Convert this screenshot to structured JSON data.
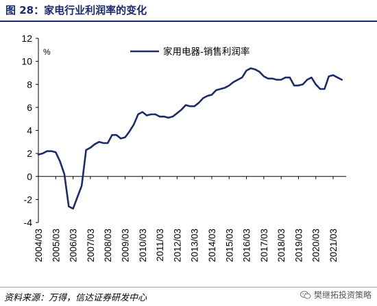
{
  "figure": {
    "title": "图 28：家电行业利润率的变化",
    "source": "资料来源：万得，信达证券研发中心",
    "watermark": "樊继拓投资策略",
    "watermark_icon": "wechat-icon",
    "accent_color": "#1a2a6c"
  },
  "chart_data": {
    "type": "line",
    "title": "",
    "ylabel": "%",
    "xlabel": "",
    "ylim": [
      -4,
      12
    ],
    "yticks": [
      "-4",
      "-2",
      "0",
      "2",
      "4",
      "6",
      "8",
      "10",
      "12"
    ],
    "xticks": [
      "2004/03",
      "2005/03",
      "2006/03",
      "2007/03",
      "2008/03",
      "2009/03",
      "2010/03",
      "2011/03",
      "2012/03",
      "2013/03",
      "2014/03",
      "2015/03",
      "2016/03",
      "2017/03",
      "2018/03",
      "2019/03",
      "2020/03",
      "2021/03"
    ],
    "x_range": [
      "2004/03",
      "2021/12"
    ],
    "grid": false,
    "legend_position": "top-right",
    "series": [
      {
        "name": "家用电器-销售利润率",
        "color": "#1a2a6c",
        "x": [
          "2004/03",
          "2004/06",
          "2004/09",
          "2004/12",
          "2005/03",
          "2005/06",
          "2005/09",
          "2005/12",
          "2006/03",
          "2006/06",
          "2006/09",
          "2006/12",
          "2007/03",
          "2007/06",
          "2007/09",
          "2007/12",
          "2008/03",
          "2008/06",
          "2008/09",
          "2008/12",
          "2009/03",
          "2009/06",
          "2009/09",
          "2009/12",
          "2010/03",
          "2010/06",
          "2010/09",
          "2010/12",
          "2011/03",
          "2011/06",
          "2011/09",
          "2011/12",
          "2012/03",
          "2012/06",
          "2012/09",
          "2012/12",
          "2013/03",
          "2013/06",
          "2013/09",
          "2013/12",
          "2014/03",
          "2014/06",
          "2014/09",
          "2014/12",
          "2015/03",
          "2015/06",
          "2015/09",
          "2015/12",
          "2016/03",
          "2016/06",
          "2016/09",
          "2016/12",
          "2017/03",
          "2017/06",
          "2017/09",
          "2017/12",
          "2018/03",
          "2018/06",
          "2018/09",
          "2018/12",
          "2019/03",
          "2019/06",
          "2019/09",
          "2019/12",
          "2020/03",
          "2020/06",
          "2020/09",
          "2020/12",
          "2021/03",
          "2021/06",
          "2021/09"
        ],
        "values": [
          1.9,
          2.0,
          2.2,
          2.2,
          2.1,
          1.3,
          0.2,
          -2.6,
          -2.8,
          -1.8,
          -0.8,
          2.3,
          2.5,
          2.8,
          3.0,
          2.9,
          2.9,
          3.6,
          3.6,
          3.3,
          3.4,
          3.9,
          4.5,
          5.4,
          5.6,
          5.3,
          5.4,
          5.4,
          5.2,
          5.2,
          5.1,
          5.2,
          5.5,
          5.8,
          6.2,
          6.1,
          6.1,
          6.4,
          6.8,
          7.0,
          7.1,
          7.5,
          7.6,
          7.7,
          7.9,
          8.2,
          8.4,
          8.6,
          9.2,
          9.4,
          9.3,
          9.1,
          8.7,
          8.5,
          8.5,
          8.4,
          8.4,
          8.6,
          8.6,
          7.9,
          7.9,
          8.0,
          8.4,
          8.6,
          8.0,
          7.6,
          7.6,
          8.7,
          8.8,
          8.6,
          8.4
        ]
      }
    ]
  }
}
